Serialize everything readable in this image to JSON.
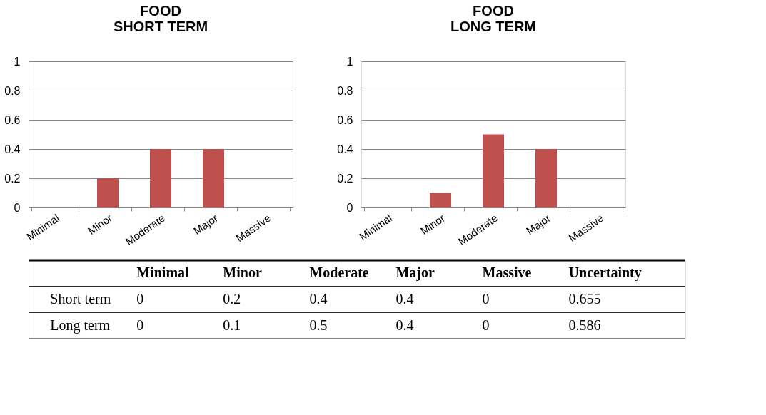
{
  "chart_data": [
    {
      "type": "bar",
      "title": "FOOD\nSHORT TERM",
      "categories": [
        "Minimal",
        "Minor",
        "Moderate",
        "Major",
        "Massive"
      ],
      "values": [
        0,
        0.2,
        0.4,
        0.4,
        0
      ],
      "color": "#c0504d",
      "ylim": [
        0,
        1
      ],
      "yticks": [
        0,
        0.2,
        0.4,
        0.6,
        0.8,
        1
      ],
      "grid": "y"
    },
    {
      "type": "bar",
      "title": "FOOD\nLONG TERM",
      "categories": [
        "Minimal",
        "Minor",
        "Moderate",
        "Major",
        "Massive"
      ],
      "values": [
        0,
        0.1,
        0.5,
        0.4,
        0
      ],
      "color": "#c0504d",
      "ylim": [
        0,
        1
      ],
      "yticks": [
        0,
        0.2,
        0.4,
        0.6,
        0.8,
        1
      ],
      "grid": "y"
    },
    {
      "type": "other",
      "categories": [
        "Minimal",
        "Minor",
        "Moderate",
        "Major",
        "Massive",
        "Uncertainty"
      ],
      "y_categories": [
        "Short term",
        "Long term"
      ],
      "cell_labels": [
        [
          "0",
          "0.2",
          "0.4",
          "0.4",
          "0",
          "0.655"
        ],
        [
          "0",
          "0.1",
          "0.5",
          "0.4",
          "0",
          "0.586"
        ]
      ]
    }
  ]
}
